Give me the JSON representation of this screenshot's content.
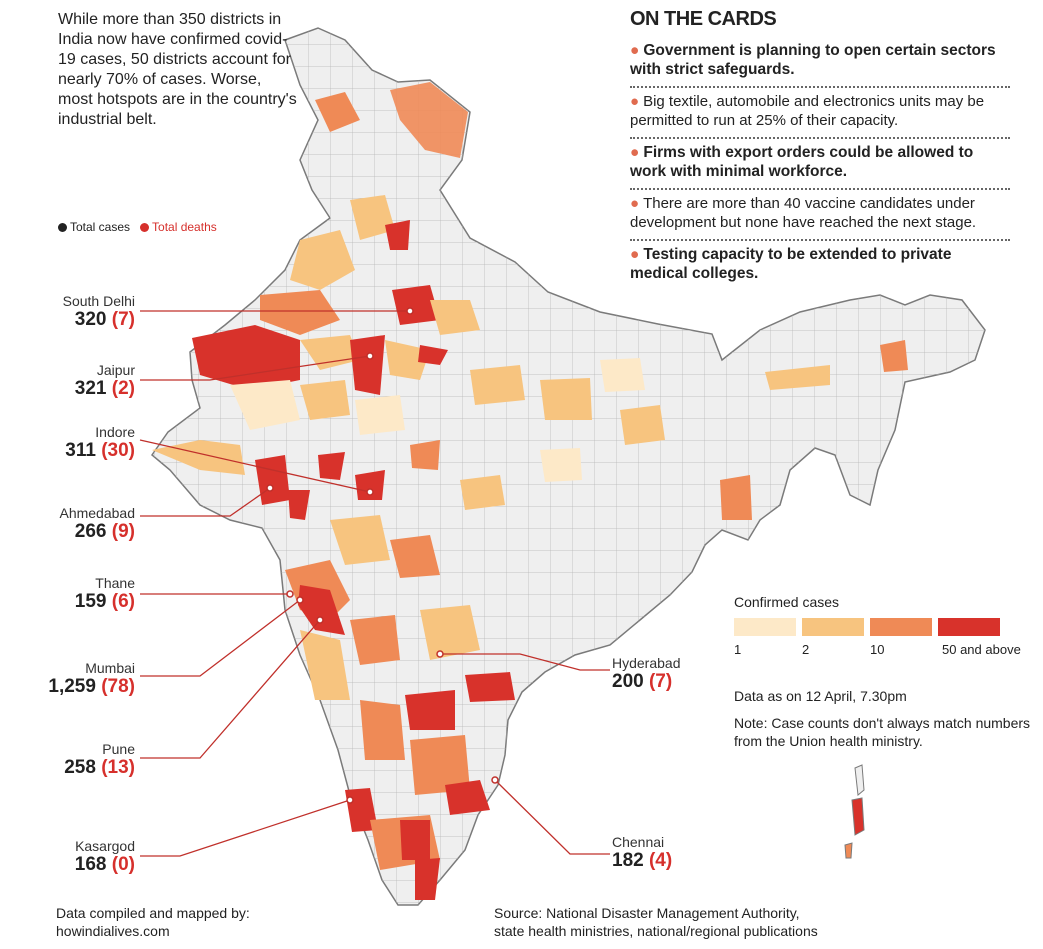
{
  "intro": "While more than 350 districts in India now have confirmed covid-19 cases, 50 districts account for nearly 70% of cases. Worse, most hotspots are in the country's industrial belt.",
  "legend_keys": {
    "total_cases": "Total cases",
    "total_deaths": "Total deaths",
    "cases_color": "#222222",
    "deaths_color": "#d6302c"
  },
  "cards": {
    "title": "ON THE CARDS",
    "items": [
      {
        "text": "Government is planning to open certain sectors with strict safeguards.",
        "bold": true
      },
      {
        "text": "Big textile, automobile and electronics units may be permitted to run at 25% of their capacity.",
        "bold": false
      },
      {
        "text": "Firms with export orders could be allowed to work with minimal workforce.",
        "bold": true
      },
      {
        "text": "There are more than 40 vaccine candidates under development but none have reached the next stage.",
        "bold": false
      },
      {
        "text": "Testing capacity to be extended to private medical colleges.",
        "bold": true
      }
    ]
  },
  "cities": [
    {
      "name": "South Delhi",
      "cases": "320",
      "deaths": "(7)"
    },
    {
      "name": "Jaipur",
      "cases": "321",
      "deaths": "(2)"
    },
    {
      "name": "Indore",
      "cases": "311",
      "deaths": "(30)"
    },
    {
      "name": "Ahmedabad",
      "cases": "266",
      "deaths": "(9)"
    },
    {
      "name": "Thane",
      "cases": "159",
      "deaths": "(6)"
    },
    {
      "name": "Mumbai",
      "cases": "1,259",
      "deaths": "(78)"
    },
    {
      "name": "Pune",
      "cases": "258",
      "deaths": "(13)"
    },
    {
      "name": "Kasargod",
      "cases": "168",
      "deaths": "(0)"
    },
    {
      "name": "Hyderabad",
      "cases": "200",
      "deaths": "(7)"
    },
    {
      "name": "Chennai",
      "cases": "182",
      "deaths": "(4)"
    }
  ],
  "confirmed_legend": {
    "title": "Confirmed cases",
    "bins": [
      {
        "label": "1",
        "color": "#fde9c8"
      },
      {
        "label": "2",
        "color": "#f7c47f"
      },
      {
        "label": "10",
        "color": "#ef8a56"
      },
      {
        "label": "50 and above",
        "color": "#d8322b"
      }
    ]
  },
  "data_date": "Data as on 12 April, 7.30pm",
  "note": "Note: Case counts don't always match numbers from the Union health ministry.",
  "credit": {
    "line1": "Data compiled and mapped by:",
    "line2": "howindialives.com"
  },
  "source": {
    "line1": "Source: National Disaster Management Authority,",
    "line2": "state health ministries, national/regional publications"
  },
  "colors": {
    "base": "#efefef",
    "border": "#9a9a9a",
    "accent": "#d6302c",
    "bullet": "#e06b4f"
  }
}
